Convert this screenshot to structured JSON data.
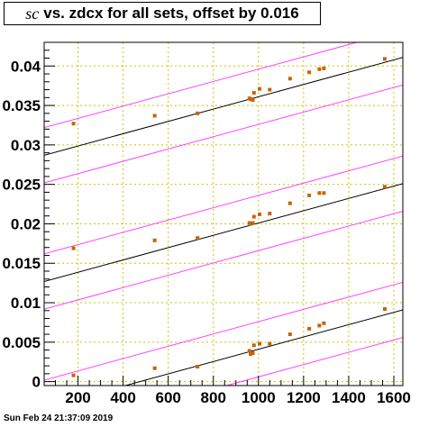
{
  "chart_data": {
    "type": "scatter",
    "title_em": "sc",
    "title_rest": "vs. zdcx for all sets, offset by 0.016",
    "xlabel": "",
    "ylabel": "",
    "xlim": [
      50,
      1640
    ],
    "ylim": [
      -0.0005,
      0.043
    ],
    "x_ticks": [
      200,
      400,
      600,
      800,
      1000,
      1200,
      1400,
      1600
    ],
    "x_tick_labels": [
      "200",
      "400",
      "600",
      "800",
      "1000",
      "1200",
      "1400",
      "1600"
    ],
    "y_ticks": [
      0,
      0.005,
      0.01,
      0.015,
      0.02,
      0.025,
      0.03,
      0.035,
      0.04
    ],
    "y_tick_labels": [
      "0",
      "0.005",
      "0.01",
      "0.015",
      "0.02",
      "0.025",
      "0.03",
      "0.035",
      "0.04"
    ],
    "grid": true,
    "colors": {
      "points": "#c86400",
      "fit": "#000000",
      "band": "#ff44ff",
      "grid": "#c8c800"
    },
    "series": [
      {
        "x": [
          180,
          540,
          730,
          960,
          965,
          975,
          980,
          1005,
          1050,
          1140,
          1225,
          1270,
          1290,
          1560
        ],
        "y": [
          0.0327,
          0.0337,
          0.034,
          0.0359,
          0.0358,
          0.0357,
          0.0366,
          0.0371,
          0.037,
          0.0384,
          0.0392,
          0.0396,
          0.0397,
          0.0409
        ]
      },
      {
        "x": [
          180,
          540,
          730,
          960,
          965,
          975,
          980,
          1005,
          1050,
          1140,
          1225,
          1270,
          1290,
          1560
        ],
        "y": [
          0.0169,
          0.0179,
          0.0182,
          0.0201,
          0.02,
          0.0201,
          0.0209,
          0.0212,
          0.0213,
          0.0226,
          0.0236,
          0.0239,
          0.0239,
          0.0247
        ]
      },
      {
        "x": [
          180,
          540,
          730,
          960,
          965,
          975,
          980,
          1005,
          1050,
          1140,
          1225,
          1270,
          1290,
          1560
        ],
        "y": [
          0.0008,
          0.0017,
          0.0019,
          0.0039,
          0.0035,
          0.0036,
          0.0046,
          0.0048,
          0.0048,
          0.006,
          0.0067,
          0.0071,
          0.0074,
          0.0092
        ]
      }
    ],
    "fits": [
      {
        "intercept": 0.0283,
        "slope": 7.8e-06
      },
      {
        "intercept": 0.0123,
        "slope": 7.8e-06
      },
      {
        "intercept": -0.0037,
        "slope": 7.8e-06
      }
    ],
    "band_half_width": 0.0035
  },
  "timestamp": "Sun Feb 24 21:37:09 2019"
}
